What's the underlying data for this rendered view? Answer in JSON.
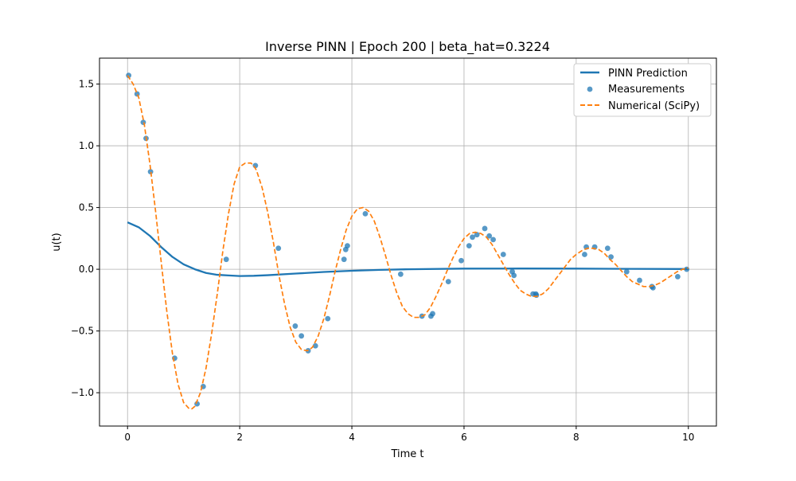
{
  "chart_data": {
    "type": "line",
    "title": "Inverse PINN | Epoch 200 | beta_hat=0.3224",
    "xlabel": "Time t",
    "ylabel": "u(t)",
    "xlim": [
      -0.5,
      10.5
    ],
    "ylim": [
      -1.27,
      1.71
    ],
    "x_ticks": [
      0,
      2,
      4,
      6,
      8,
      10
    ],
    "y_ticks": [
      -1.0,
      -0.5,
      0.0,
      0.5,
      1.0,
      1.5
    ],
    "x_tick_labels": [
      "0",
      "2",
      "4",
      "6",
      "8",
      "10"
    ],
    "y_tick_labels": [
      "−1.0",
      "−0.5",
      "0.0",
      "0.5",
      "1.0",
      "1.5"
    ],
    "grid": true,
    "legend_position": "top-right",
    "series": [
      {
        "name": "PINN Prediction",
        "kind": "line",
        "color": "#1f77b4",
        "x": [
          0.0,
          0.2,
          0.4,
          0.6,
          0.8,
          1.0,
          1.2,
          1.4,
          1.6,
          1.8,
          2.0,
          2.25,
          2.5,
          3.0,
          3.5,
          4.0,
          4.5,
          5.0,
          6.0,
          7.0,
          8.0,
          9.0,
          10.0
        ],
        "y": [
          0.38,
          0.34,
          0.27,
          0.18,
          0.1,
          0.04,
          0.0,
          -0.03,
          -0.045,
          -0.05,
          -0.055,
          -0.053,
          -0.048,
          -0.035,
          -0.022,
          -0.012,
          -0.005,
          0.0,
          0.005,
          0.006,
          0.005,
          0.003,
          0.002
        ]
      },
      {
        "name": "Measurements",
        "kind": "scatter",
        "color": "#1f77b4",
        "x": [
          0.02,
          0.17,
          0.28,
          0.33,
          0.41,
          0.84,
          1.24,
          1.35,
          1.76,
          2.28,
          2.69,
          2.99,
          3.1,
          3.22,
          3.35,
          3.57,
          3.86,
          3.89,
          3.92,
          4.24,
          4.87,
          5.25,
          5.41,
          5.44,
          5.72,
          5.95,
          6.09,
          6.15,
          6.23,
          6.37,
          6.45,
          6.52,
          6.7,
          6.86,
          6.89,
          7.23,
          7.28,
          7.29,
          8.15,
          8.18,
          8.33,
          8.56,
          8.62,
          8.9,
          9.13,
          9.35,
          9.37,
          9.81,
          9.97
        ],
        "y": [
          1.57,
          1.42,
          1.19,
          1.06,
          0.79,
          -0.72,
          -1.09,
          -0.95,
          0.08,
          0.84,
          0.17,
          -0.46,
          -0.54,
          -0.66,
          -0.62,
          -0.4,
          0.08,
          0.16,
          0.19,
          0.45,
          -0.04,
          -0.38,
          -0.38,
          -0.36,
          -0.1,
          0.07,
          0.19,
          0.26,
          0.28,
          0.33,
          0.27,
          0.24,
          0.12,
          -0.02,
          -0.05,
          -0.2,
          -0.2,
          -0.21,
          0.12,
          0.18,
          0.18,
          0.17,
          0.1,
          -0.02,
          -0.09,
          -0.14,
          -0.15,
          -0.06,
          0.0
        ]
      },
      {
        "name": "Numerical (SciPy)",
        "kind": "line",
        "style": "dashed",
        "color": "#ff7f0e",
        "x": [
          0.0,
          0.1,
          0.2,
          0.3,
          0.4,
          0.5,
          0.6,
          0.7,
          0.8,
          0.9,
          1.0,
          1.1,
          1.15,
          1.2,
          1.3,
          1.4,
          1.5,
          1.6,
          1.7,
          1.8,
          1.9,
          2.0,
          2.1,
          2.2,
          2.25,
          2.3,
          2.4,
          2.5,
          2.6,
          2.7,
          2.8,
          2.9,
          3.0,
          3.1,
          3.2,
          3.25,
          3.3,
          3.4,
          3.5,
          3.6,
          3.7,
          3.8,
          3.9,
          4.0,
          4.1,
          4.2,
          4.3,
          4.4,
          4.5,
          4.6,
          4.7,
          4.8,
          4.9,
          5.0,
          5.1,
          5.2,
          5.3,
          5.4,
          5.5,
          5.6,
          5.7,
          5.8,
          5.9,
          6.0,
          6.1,
          6.2,
          6.3,
          6.4,
          6.5,
          6.6,
          6.7,
          6.8,
          6.9,
          7.0,
          7.1,
          7.2,
          7.3,
          7.4,
          7.5,
          7.6,
          7.7,
          7.8,
          7.9,
          8.0,
          8.1,
          8.2,
          8.3,
          8.4,
          8.5,
          8.6,
          8.7,
          8.8,
          8.9,
          9.0,
          9.1,
          9.2,
          9.3,
          9.4,
          9.5,
          9.6,
          9.7,
          9.8,
          9.9,
          10.0
        ],
        "y": [
          1.57,
          1.5,
          1.39,
          1.17,
          0.85,
          0.47,
          0.06,
          -0.34,
          -0.68,
          -0.93,
          -1.08,
          -1.13,
          -1.13,
          -1.11,
          -1.0,
          -0.8,
          -0.52,
          -0.2,
          0.15,
          0.45,
          0.69,
          0.83,
          0.86,
          0.86,
          0.84,
          0.8,
          0.66,
          0.46,
          0.22,
          -0.05,
          -0.28,
          -0.47,
          -0.59,
          -0.65,
          -0.66,
          -0.65,
          -0.63,
          -0.54,
          -0.4,
          -0.22,
          -0.02,
          0.16,
          0.32,
          0.43,
          0.49,
          0.5,
          0.47,
          0.39,
          0.26,
          0.11,
          -0.05,
          -0.19,
          -0.3,
          -0.36,
          -0.39,
          -0.39,
          -0.37,
          -0.31,
          -0.22,
          -0.12,
          -0.01,
          0.09,
          0.18,
          0.25,
          0.29,
          0.3,
          0.29,
          0.26,
          0.2,
          0.12,
          0.04,
          -0.04,
          -0.11,
          -0.17,
          -0.2,
          -0.22,
          -0.22,
          -0.2,
          -0.16,
          -0.1,
          -0.04,
          0.02,
          0.08,
          0.12,
          0.15,
          0.17,
          0.17,
          0.16,
          0.13,
          0.08,
          0.04,
          -0.01,
          -0.06,
          -0.1,
          -0.12,
          -0.14,
          -0.14,
          -0.13,
          -0.11,
          -0.08,
          -0.05,
          -0.02,
          0.0,
          0.01
        ]
      }
    ]
  }
}
